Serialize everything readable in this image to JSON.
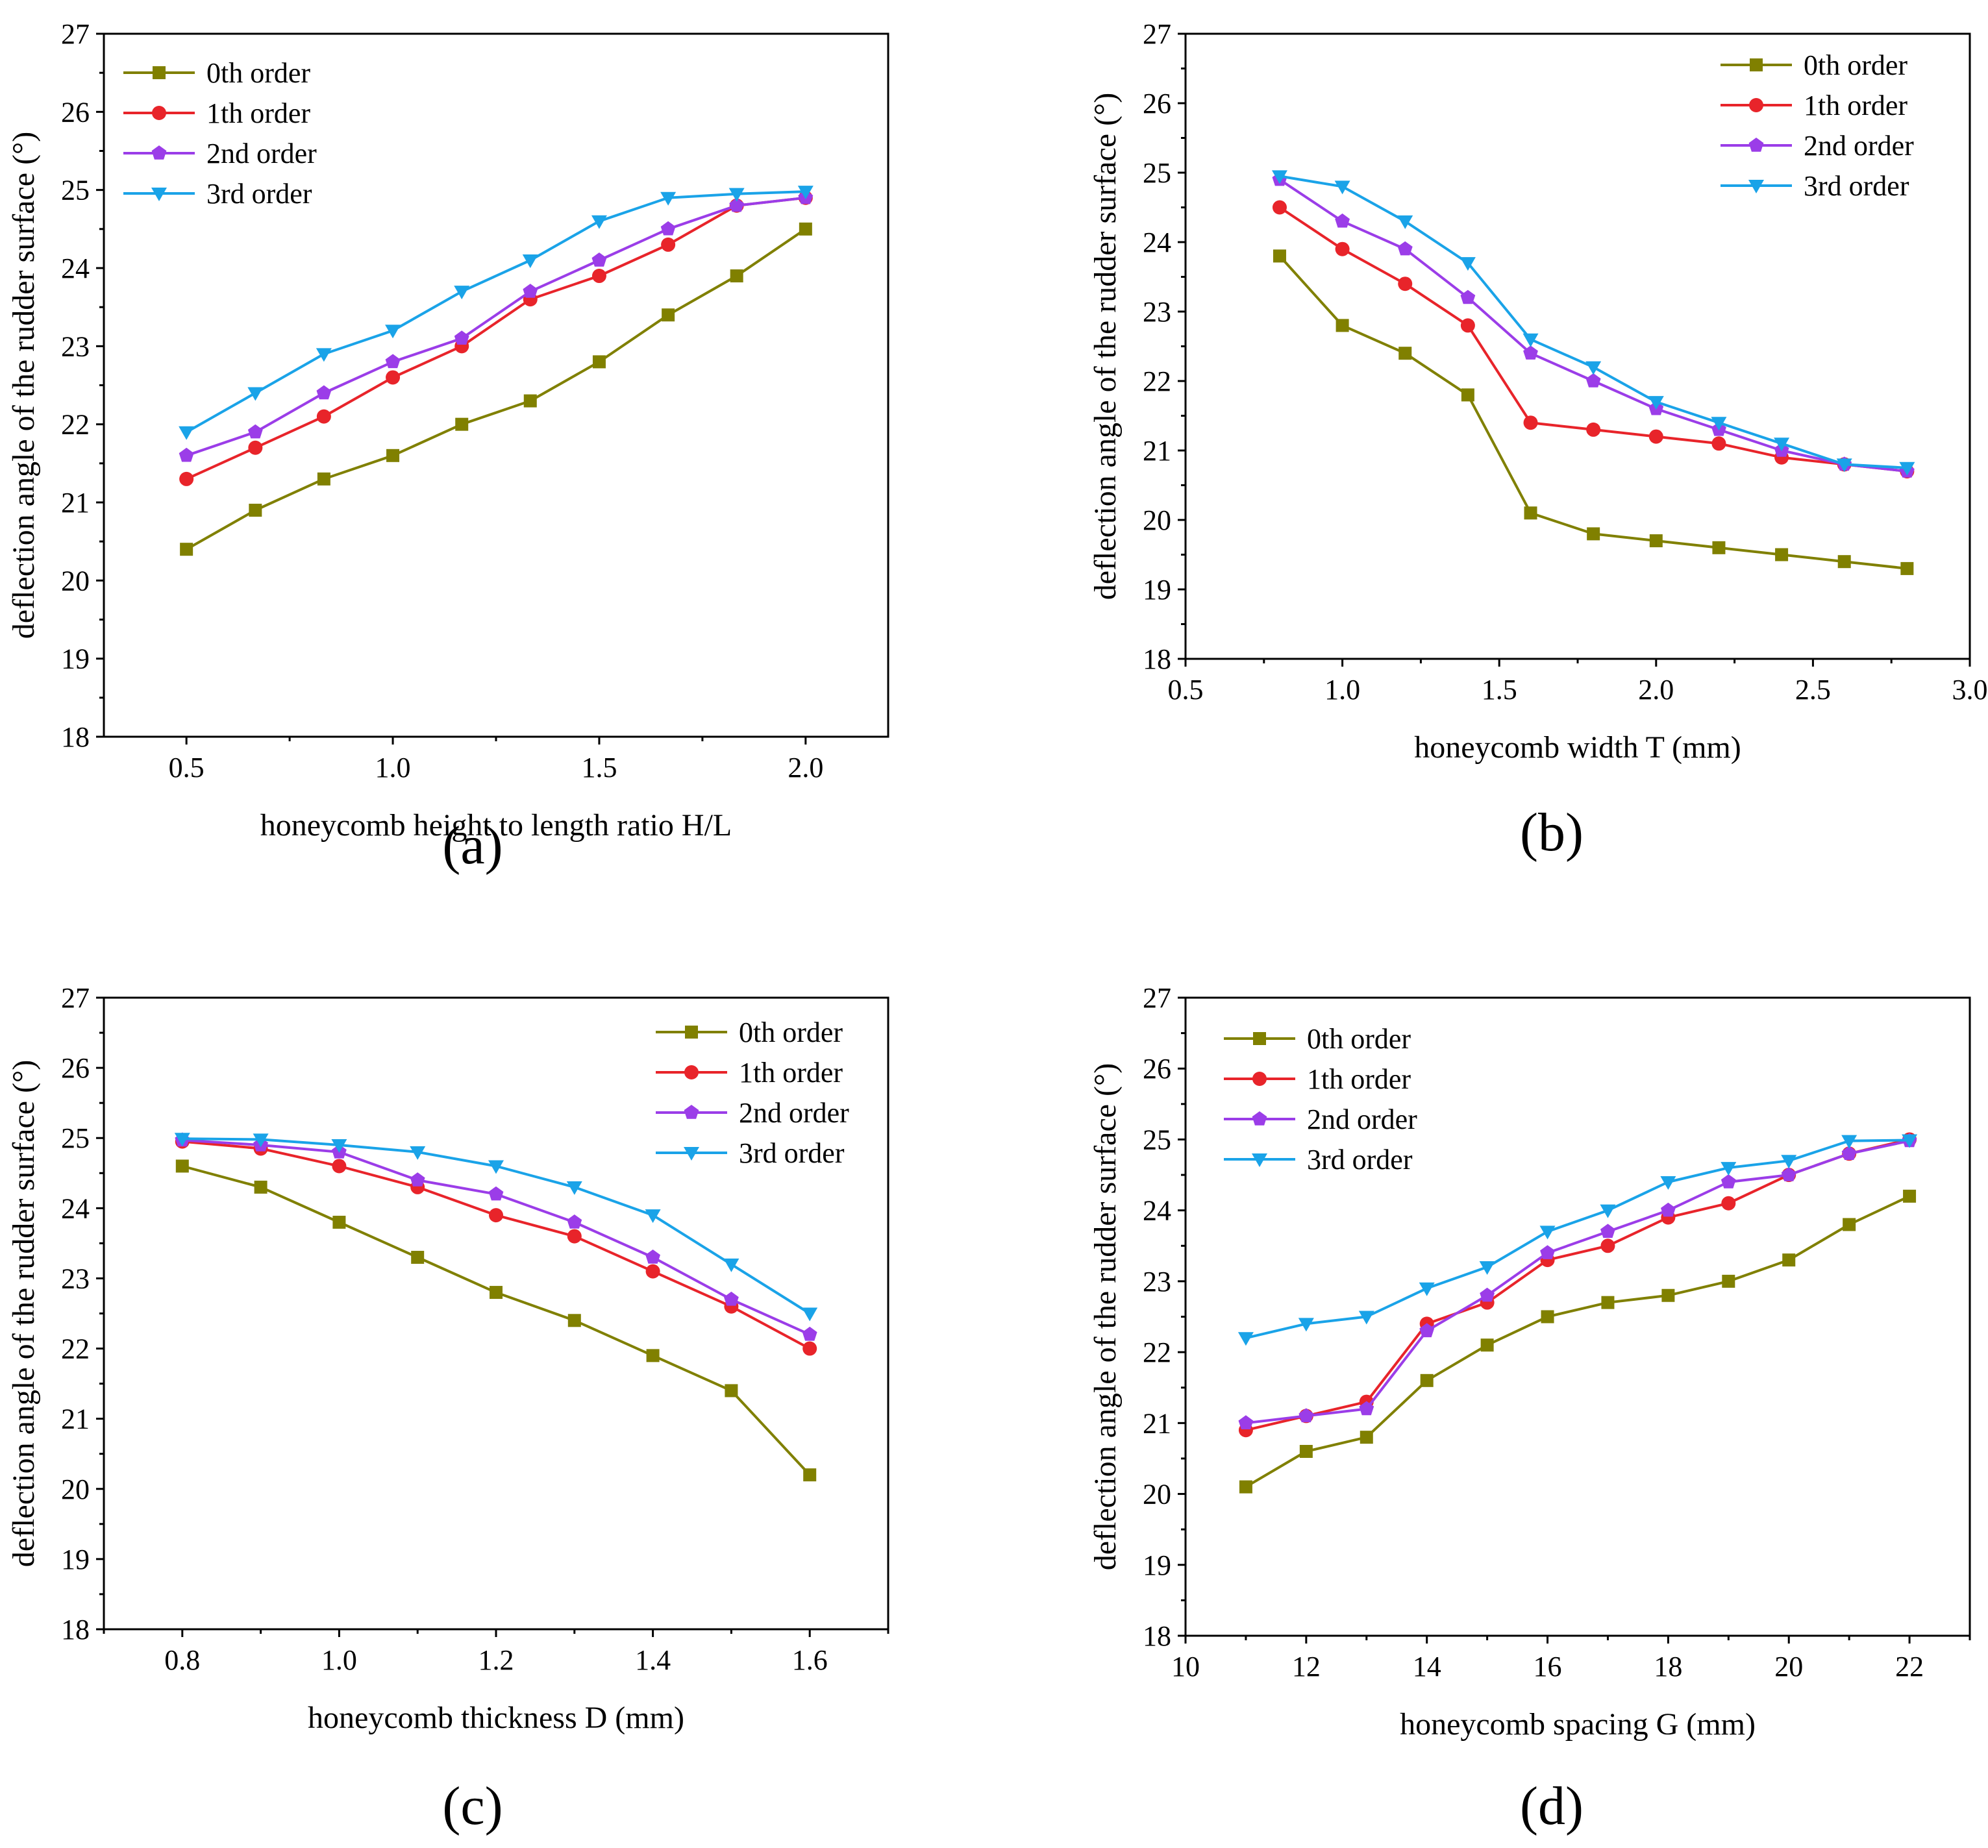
{
  "figure": {
    "background": "#ffffff",
    "series_styles": [
      {
        "name": "0th order",
        "color": "#808000",
        "marker": "square"
      },
      {
        "name": "1th order",
        "color": "#e8242a",
        "marker": "circle"
      },
      {
        "name": "2nd order",
        "color": "#9b3de8",
        "marker": "pentagon"
      },
      {
        "name": "3rd order",
        "color": "#1aa3e8",
        "marker": "triangle-down"
      }
    ]
  },
  "chart_data": [
    {
      "type": "line",
      "panel_label": "(a)",
      "title": "",
      "xlabel": "honeycomb height to length ratio H/L",
      "ylabel": "deflection angle of the rudder surface (°)",
      "xlim": [
        0.3,
        2.2
      ],
      "ylim": [
        18,
        27
      ],
      "xticks": [
        "0.5",
        "1.0",
        "1.5",
        "2.0"
      ],
      "yticks": [
        "18",
        "19",
        "20",
        "21",
        "22",
        "23",
        "24",
        "25",
        "26",
        "27"
      ],
      "legend": "top-left",
      "x": [
        0.5,
        0.667,
        0.833,
        1.0,
        1.167,
        1.333,
        1.5,
        1.667,
        1.833,
        2.0
      ],
      "series": [
        {
          "name": "0th order",
          "values": [
            20.4,
            20.9,
            21.3,
            21.6,
            22.0,
            22.3,
            22.8,
            23.4,
            23.9,
            24.5
          ]
        },
        {
          "name": "1th order",
          "values": [
            21.3,
            21.7,
            22.1,
            22.6,
            23.0,
            23.6,
            23.9,
            24.3,
            24.8,
            24.9
          ]
        },
        {
          "name": "2nd order",
          "values": [
            21.6,
            21.9,
            22.4,
            22.8,
            23.1,
            23.7,
            24.1,
            24.5,
            24.8,
            24.9
          ]
        },
        {
          "name": "3rd order",
          "values": [
            21.9,
            22.4,
            22.9,
            23.2,
            23.7,
            24.1,
            24.6,
            24.9,
            24.95,
            24.98
          ]
        }
      ]
    },
    {
      "type": "line",
      "panel_label": "(b)",
      "title": "",
      "xlabel": "honeycomb width T (mm)",
      "ylabel": "deflection angle of the rudder surface (°)",
      "xlim": [
        0.5,
        3.0
      ],
      "ylim": [
        18,
        27
      ],
      "xticks": [
        "0.5",
        "1.0",
        "1.5",
        "2.0",
        "2.5",
        "3.0"
      ],
      "yticks": [
        "18",
        "19",
        "20",
        "21",
        "22",
        "23",
        "24",
        "25",
        "26",
        "27"
      ],
      "legend": "top-right",
      "x": [
        0.8,
        1.0,
        1.2,
        1.4,
        1.6,
        1.8,
        2.0,
        2.2,
        2.4,
        2.6,
        2.8
      ],
      "series": [
        {
          "name": "0th order",
          "values": [
            23.8,
            22.8,
            22.4,
            21.8,
            20.1,
            19.8,
            19.7,
            19.6,
            19.5,
            19.4,
            19.3
          ]
        },
        {
          "name": "1th order",
          "values": [
            24.5,
            23.9,
            23.4,
            22.8,
            21.4,
            21.3,
            21.2,
            21.1,
            20.9,
            20.8,
            20.7
          ]
        },
        {
          "name": "2nd order",
          "values": [
            24.9,
            24.3,
            23.9,
            23.2,
            22.4,
            22.0,
            21.6,
            21.3,
            21.0,
            20.8,
            20.7
          ]
        },
        {
          "name": "3rd order",
          "values": [
            24.95,
            24.8,
            24.3,
            23.7,
            22.6,
            22.2,
            21.7,
            21.4,
            21.1,
            20.8,
            20.75
          ]
        }
      ]
    },
    {
      "type": "line",
      "panel_label": "(c)",
      "title": "",
      "xlabel": "honeycomb thickness D (mm)",
      "ylabel": "deflection angle of the rudder surface (°)",
      "xlim": [
        0.7,
        1.7
      ],
      "ylim": [
        18,
        27
      ],
      "xticks": [
        "0.8",
        "1.0",
        "1.2",
        "1.4",
        "1.6"
      ],
      "yticks": [
        "18",
        "19",
        "20",
        "21",
        "22",
        "23",
        "24",
        "25",
        "26",
        "27"
      ],
      "legend": "top-right",
      "x": [
        0.8,
        0.9,
        1.0,
        1.1,
        1.2,
        1.3,
        1.4,
        1.5,
        1.6
      ],
      "series": [
        {
          "name": "0th order",
          "values": [
            24.6,
            24.3,
            23.8,
            23.3,
            22.8,
            22.4,
            21.9,
            21.4,
            20.2
          ]
        },
        {
          "name": "1th order",
          "values": [
            24.95,
            24.85,
            24.6,
            24.3,
            23.9,
            23.6,
            23.1,
            22.6,
            22.0
          ]
        },
        {
          "name": "2nd order",
          "values": [
            24.97,
            24.9,
            24.8,
            24.4,
            24.2,
            23.8,
            23.3,
            22.7,
            22.2
          ]
        },
        {
          "name": "3rd order",
          "values": [
            24.99,
            24.98,
            24.9,
            24.8,
            24.6,
            24.3,
            23.9,
            23.2,
            22.5
          ]
        }
      ]
    },
    {
      "type": "line",
      "panel_label": "(d)",
      "title": "",
      "xlabel": "honeycomb spacing G (mm)",
      "ylabel": "deflection angle of the rudder surface (°)",
      "xlim": [
        10,
        23
      ],
      "ylim": [
        18,
        27
      ],
      "xticks": [
        "10",
        "12",
        "14",
        "16",
        "18",
        "20",
        "22"
      ],
      "yticks": [
        "18",
        "19",
        "20",
        "21",
        "22",
        "23",
        "24",
        "25",
        "26",
        "27"
      ],
      "legend": "top-left",
      "x": [
        11,
        12,
        13,
        14,
        15,
        16,
        17,
        18,
        19,
        20,
        21,
        22
      ],
      "series": [
        {
          "name": "0th order",
          "values": [
            20.1,
            20.6,
            20.8,
            21.6,
            22.1,
            22.5,
            22.7,
            22.8,
            23.0,
            23.3,
            23.8,
            24.2
          ]
        },
        {
          "name": "1th order",
          "values": [
            20.9,
            21.1,
            21.3,
            22.4,
            22.7,
            23.3,
            23.5,
            23.9,
            24.1,
            24.5,
            24.8,
            25.0
          ]
        },
        {
          "name": "2nd order",
          "values": [
            21.0,
            21.1,
            21.2,
            22.3,
            22.8,
            23.4,
            23.7,
            24.0,
            24.4,
            24.5,
            24.8,
            24.98
          ]
        },
        {
          "name": "3rd order",
          "values": [
            22.2,
            22.4,
            22.5,
            22.9,
            23.2,
            23.7,
            24.0,
            24.4,
            24.6,
            24.7,
            24.98,
            24.99
          ]
        }
      ]
    }
  ]
}
